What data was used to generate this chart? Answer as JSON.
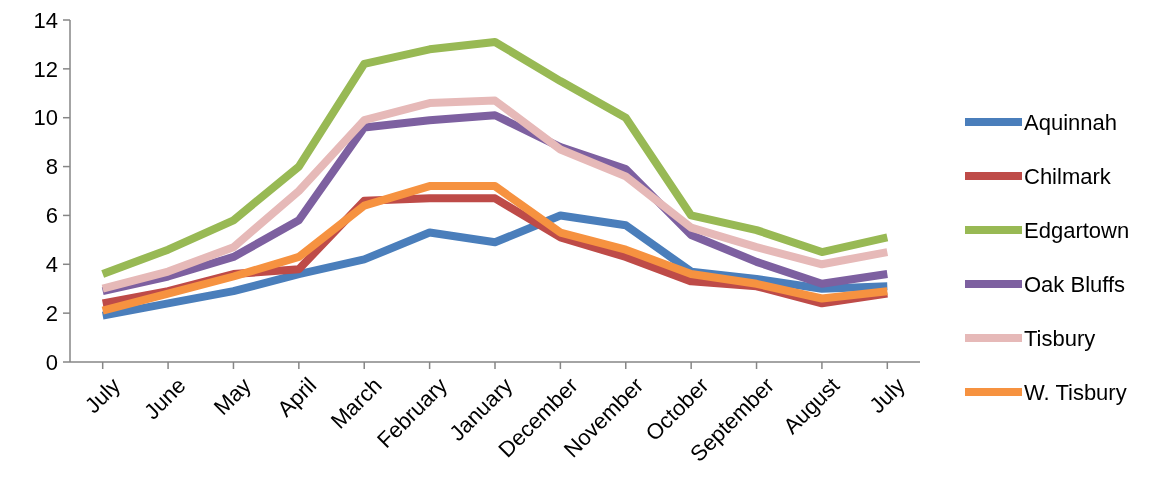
{
  "chart_data": {
    "type": "line",
    "categories": [
      "July",
      "June",
      "May",
      "April",
      "March",
      "February",
      "January",
      "December",
      "November",
      "October",
      "September",
      "August",
      "July"
    ],
    "ylim": [
      0,
      14
    ],
    "yticks": [
      0,
      2,
      4,
      6,
      8,
      10,
      12,
      14
    ],
    "grid": false,
    "legend": "right",
    "marker": "none",
    "line_style": "solid",
    "series": [
      {
        "name": "Aquinnah",
        "color": "#4a7ebb",
        "values": [
          1.9,
          2.4,
          2.9,
          3.6,
          4.2,
          5.3,
          4.9,
          6.0,
          5.6,
          3.7,
          3.4,
          3.0,
          3.1
        ]
      },
      {
        "name": "Chilmark",
        "color": "#be4b48",
        "values": [
          2.4,
          2.9,
          3.6,
          3.8,
          6.6,
          6.7,
          6.7,
          5.1,
          4.3,
          3.3,
          3.1,
          2.4,
          2.8
        ]
      },
      {
        "name": "Edgartown",
        "color": "#98b954",
        "values": [
          3.6,
          4.6,
          5.8,
          8.0,
          12.2,
          12.8,
          13.1,
          11.5,
          10.0,
          6.0,
          5.4,
          4.5,
          5.1
        ]
      },
      {
        "name": "Oak Bluffs",
        "color": "#7d60a0",
        "values": [
          2.9,
          3.5,
          4.3,
          5.8,
          9.6,
          9.9,
          10.1,
          8.8,
          7.9,
          5.2,
          4.1,
          3.2,
          3.6
        ]
      },
      {
        "name": "Tisbury",
        "color": "#e6b9b8",
        "values": [
          3.0,
          3.7,
          4.7,
          7.0,
          9.9,
          10.6,
          10.7,
          8.7,
          7.6,
          5.5,
          4.7,
          4.0,
          4.5
        ]
      },
      {
        "name": "W. Tisbury",
        "color": "#f69240",
        "values": [
          2.1,
          2.8,
          3.5,
          4.3,
          6.4,
          7.2,
          7.2,
          5.3,
          4.6,
          3.6,
          3.2,
          2.6,
          2.9
        ]
      }
    ]
  }
}
